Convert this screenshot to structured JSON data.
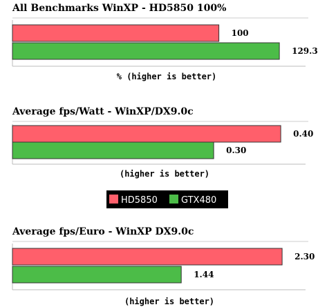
{
  "chart_data": [
    {
      "type": "bar",
      "title": "All Benchmarks WinXP - HD5850 100%",
      "xlabel": "% (higher is better)",
      "series": [
        {
          "name": "HD5850",
          "values": [
            100
          ],
          "value_labels": [
            "100"
          ]
        },
        {
          "name": "GTX480",
          "values": [
            129.3
          ],
          "value_labels": [
            "129.3"
          ]
        }
      ],
      "orientation": "horizontal",
      "xlim": [
        0,
        142
      ]
    },
    {
      "type": "bar",
      "title": "Average fps/Watt - WinXP/DX9.0c",
      "xlabel": "(higher is better)",
      "series": [
        {
          "name": "HD5850",
          "values": [
            0.4
          ],
          "value_labels": [
            "0.40"
          ]
        },
        {
          "name": "GTX480",
          "values": [
            0.3
          ],
          "value_labels": [
            "0.30"
          ]
        }
      ],
      "orientation": "horizontal",
      "xlim": [
        0,
        0.437
      ]
    },
    {
      "type": "bar",
      "title": "Average fps/Euro - WinXP DX9.0c",
      "xlabel": "(higher is better)",
      "series": [
        {
          "name": "HD5850",
          "values": [
            2.3
          ],
          "value_labels": [
            "2.30"
          ]
        },
        {
          "name": "GTX480",
          "values": [
            1.44
          ],
          "value_labels": [
            "1.44"
          ]
        }
      ],
      "orientation": "horizontal",
      "xlim": [
        0,
        2.5
      ]
    }
  ],
  "legend": {
    "items": [
      {
        "label": "HD5850",
        "color": "#ff5f6b"
      },
      {
        "label": "GTX480",
        "color": "#4cbc48"
      }
    ],
    "background": "#000000"
  },
  "colors": {
    "HD5850": "#ff5f6b",
    "GTX480": "#4cbc48",
    "bar_border": "#333333"
  }
}
